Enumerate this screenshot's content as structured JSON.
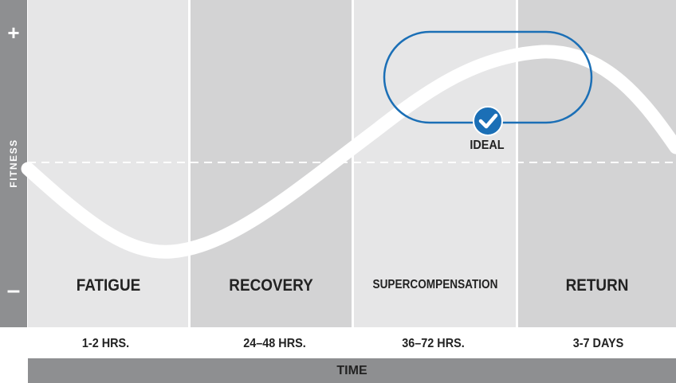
{
  "y_axis": {
    "label": "FITNESS",
    "top_symbol": "+",
    "bottom_symbol": "–"
  },
  "phases": [
    {
      "label": "FATIGUE",
      "duration": "1-2 HRS.",
      "color": "#e6e6e7"
    },
    {
      "label": "RECOVERY",
      "duration": "24–48 HRS.",
      "color": "#d3d3d4"
    },
    {
      "label": "SUPERCOMPENSATION",
      "duration": "36–72 HRS.",
      "color": "#e6e6e7"
    },
    {
      "label": "RETURN",
      "duration": "3-7 DAYS",
      "color": "#d3d3d4"
    }
  ],
  "x_axis": {
    "label": "TIME"
  },
  "ideal": {
    "label": "IDEAL",
    "color": "#1b6fb6",
    "icon": "check-icon"
  },
  "colors": {
    "axis_bar": "#8e8f91",
    "curve": "#ffffff",
    "baseline": "#ffffff"
  }
}
